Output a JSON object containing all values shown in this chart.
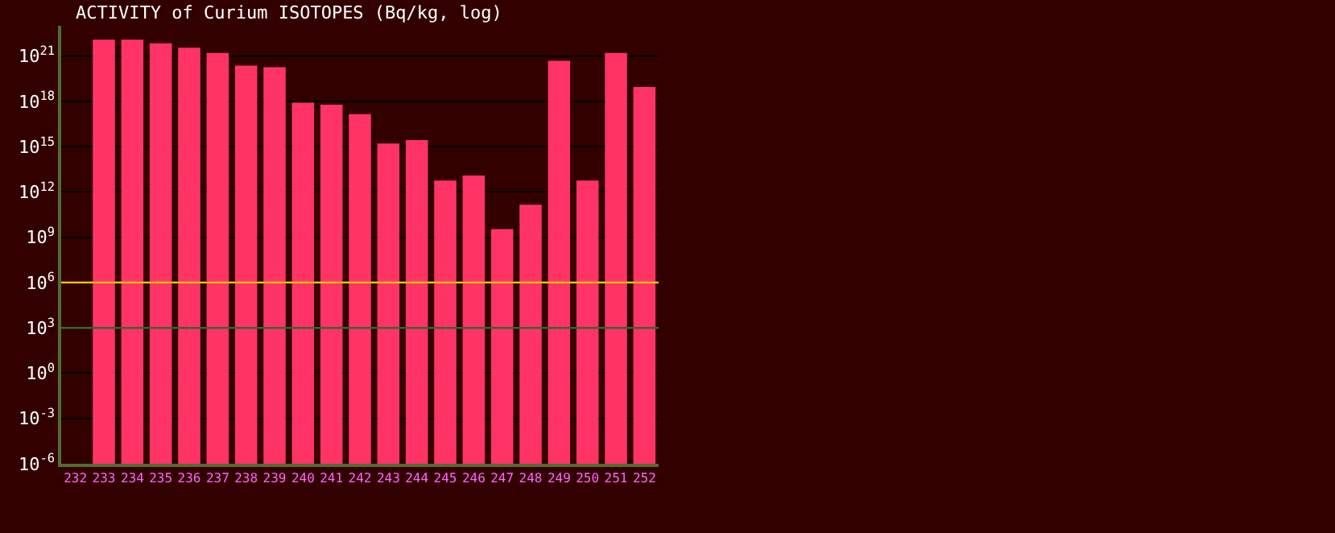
{
  "chart_data": {
    "type": "bar",
    "title": "ACTIVITY of Curium ISOTOPES (Bq/kg, log)",
    "categories": [
      "232",
      "233",
      "234",
      "235",
      "236",
      "237",
      "238",
      "239",
      "240",
      "241",
      "242",
      "243",
      "244",
      "245",
      "246",
      "247",
      "248",
      "249",
      "250",
      "251",
      "252"
    ],
    "values": [
      null,
      1.2e+22,
      1.2e+22,
      7e+21,
      3.5e+21,
      1.6e+21,
      2.3e+20,
      1.8e+20,
      8e+17,
      6e+17,
      1.4e+17,
      1600000000000000.0,
      2700000000000000.0,
      5600000000000.0,
      12000000000000.0,
      3500000000.0,
      140000000000.0,
      4.8e+20,
      5600000000000.0,
      1.6e+21,
      9e+18
    ],
    "color": "#ff3366",
    "log": true,
    "ylim": [
      1e-06,
      1e+23
    ],
    "yticks": [
      {
        "value": 1e-06,
        "label": "10$^{-6}$"
      },
      {
        "value": 0.001,
        "label": "10$^{-3}$"
      },
      {
        "value": 1,
        "label": "10$^{0}$"
      },
      {
        "value": 1000,
        "label": "10$^{3}$"
      },
      {
        "value": 1000000.0,
        "label": "10$^{6}$"
      },
      {
        "value": 1000000000.0,
        "label": "10$^{9}$"
      },
      {
        "value": 1000000000000.0,
        "label": "10$^{12}$"
      },
      {
        "value": 1000000000000000.0,
        "label": "10$^{15}$"
      },
      {
        "value": 1e+18,
        "label": "10$^{18}$"
      },
      {
        "value": 1e+21,
        "label": "10$^{21}$"
      }
    ],
    "grid": "y",
    "ref_lines": [
      {
        "axis": "y",
        "value": 1000000.0,
        "color": "#ffcc00"
      },
      {
        "axis": "y",
        "value": 1000,
        "color": "#336633"
      }
    ]
  }
}
